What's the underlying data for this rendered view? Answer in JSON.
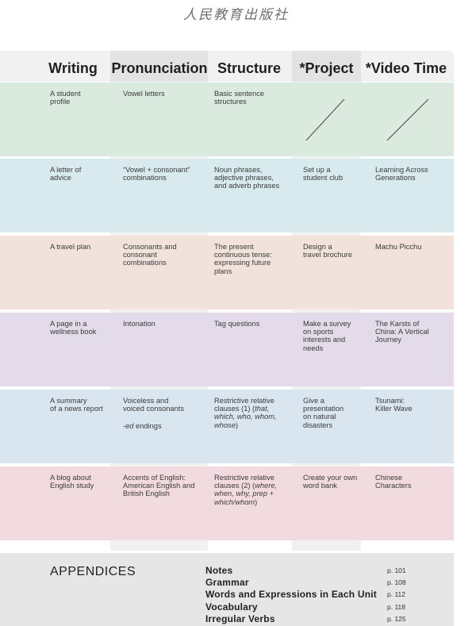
{
  "publisher": "人民教育出版社",
  "headers": [
    "Writing",
    "Pronunciation",
    "Structure",
    "*Project",
    "*Video Time"
  ],
  "rows": [
    {
      "bg": "#dbeadf",
      "cells": [
        "A student\nprofile",
        "Vowel letters",
        "Basic sentence\nstructures",
        "",
        ""
      ]
    },
    {
      "bg": "#d9eaee",
      "cells": [
        "A letter of\nadvice",
        "“Vowel + consonant”\ncombinations",
        "Noun phrases,\nadjective phrases,\nand adverb phrases",
        "Set up a\nstudent club",
        "Learning Across\nGenerations"
      ]
    },
    {
      "bg": "#f1e3db",
      "cells": [
        "A travel plan",
        "Consonants and\nconsonant\ncombinations",
        "The present\ncontinuous tense:\nexpressing future\nplans",
        "Design a\ntravel brochure",
        "Machu Picchu"
      ]
    },
    {
      "bg": "#e3dbe9",
      "cells": [
        "A page in a\nwellness book",
        "Intonation",
        "Tag questions",
        "Make a survey\non sports\ninterests and\nneeds",
        "The Karsts of\nChina: A Vertical\nJourney"
      ]
    },
    {
      "bg": "#d9e6f0",
      "cells": [
        "A summary\nof a news report",
        "Voiceless and\nvoiced consonants",
        "Restrictive relative\nclauses (1) (that,\nwhich, who, whom,\nwhose)",
        "Give a\npresentation\non natural\ndisasters",
        "Tsunami:\nKiller Wave"
      ],
      "extra": "-ed endings"
    },
    {
      "bg": "#f2dbe0",
      "cells": [
        "A blog about\nEnglish study",
        "Accents of English:\nAmerican English and\nBritish English",
        "Restrictive relative\nclauses (2) (where,\nwhen, why, prep +\nwhich/whom)",
        "Create your own\nword bank",
        "Chinese\nCharacters"
      ]
    }
  ],
  "appendices": {
    "title": "APPENDICES",
    "items": [
      {
        "label": "Notes",
        "page": "p. 101"
      },
      {
        "label": "Grammar",
        "page": "p. 108"
      },
      {
        "label": "Words and Expressions in Each Unit",
        "page": "p. 112"
      },
      {
        "label": "Vocabulary",
        "page": "p. 118"
      },
      {
        "label": "Irregular Verbs",
        "page": "p. 125"
      }
    ]
  }
}
